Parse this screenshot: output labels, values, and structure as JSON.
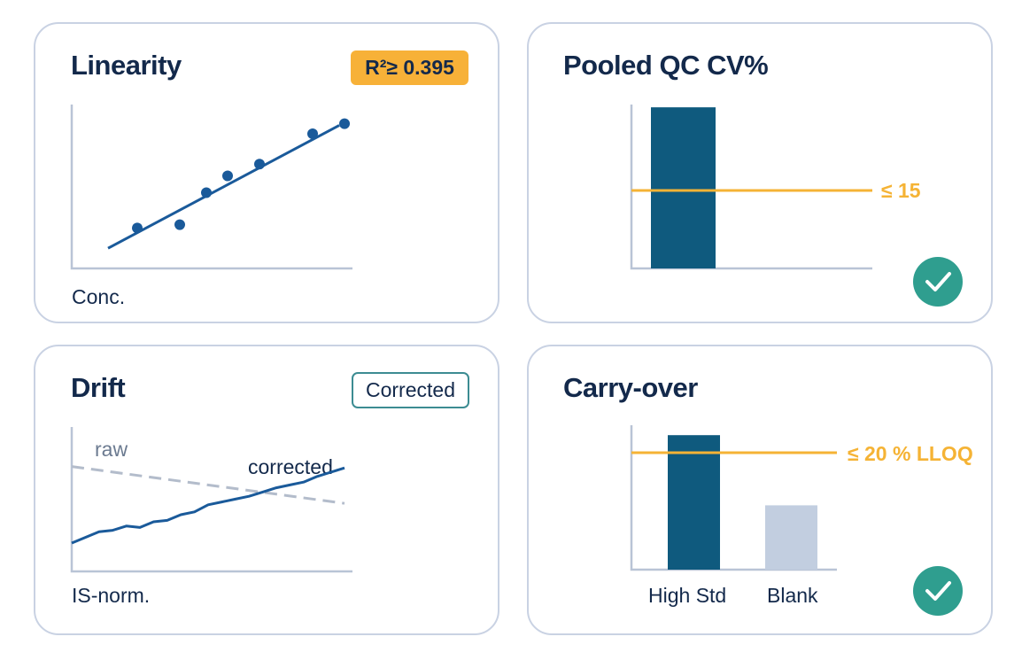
{
  "colors": {
    "title": "#13294b",
    "bar": "#0f5a7e",
    "line": "#1a5a9a",
    "threshold": "#f5b335",
    "raw": "#b3bccb",
    "check": "#2f9e8f",
    "blank_bar": "#c2cee0",
    "badge_bg": "#f7b138"
  },
  "linearity": {
    "title": "Linearity",
    "badge": "R²≥ 0.395",
    "xlabel": "Conc.",
    "points": [
      {
        "x": 2,
        "y": 2.4
      },
      {
        "x": 3.6,
        "y": 2.6
      },
      {
        "x": 4.6,
        "y": 4.5
      },
      {
        "x": 5.4,
        "y": 5.5
      },
      {
        "x": 6.6,
        "y": 6.2
      },
      {
        "x": 8.6,
        "y": 8
      },
      {
        "x": 9.8,
        "y": 8.6
      }
    ],
    "fit": {
      "x0": 0.9,
      "y0": 1.2,
      "x1": 9.6,
      "y1": 8.5
    }
  },
  "pooled_qc": {
    "title": "Pooled QC CV%",
    "value": 31,
    "threshold": 15,
    "threshold_label": "≤ 15",
    "status_icon": "check-circle-icon"
  },
  "drift": {
    "title": "Drift",
    "badge": "Corrected",
    "xlabel": "IS-norm.",
    "raw_label": "raw",
    "corrected_label": "corrected",
    "raw": [
      [
        0,
        7.4
      ],
      [
        10,
        4.8
      ]
    ],
    "corrected": [
      [
        0,
        2
      ],
      [
        0.5,
        2.4
      ],
      [
        1,
        2.8
      ],
      [
        1.5,
        2.9
      ],
      [
        2,
        3.2
      ],
      [
        2.5,
        3.1
      ],
      [
        3,
        3.5
      ],
      [
        3.5,
        3.6
      ],
      [
        4,
        4.0
      ],
      [
        4.5,
        4.2
      ],
      [
        5,
        4.7
      ],
      [
        5.5,
        4.9
      ],
      [
        6,
        5.1
      ],
      [
        6.5,
        5.3
      ],
      [
        7,
        5.6
      ],
      [
        7.5,
        5.9
      ],
      [
        8,
        6.1
      ],
      [
        8.5,
        6.3
      ],
      [
        9,
        6.7
      ],
      [
        9.5,
        7.0
      ],
      [
        10,
        7.3
      ]
    ]
  },
  "carry_over": {
    "title": "Carry-over",
    "threshold_label": "≤ 20 % LLOQ",
    "threshold": 20,
    "bars": [
      {
        "label": "High Std",
        "value": 23
      },
      {
        "label": "Blank",
        "value": 11
      }
    ],
    "status_icon": "check-circle-icon"
  }
}
